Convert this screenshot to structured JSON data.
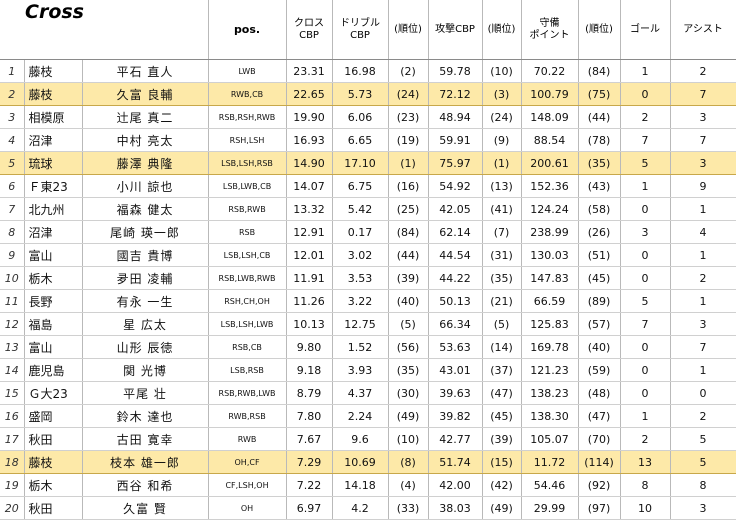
{
  "title": "Cross",
  "headers": {
    "pos": "pos.",
    "cross_cbp": [
      "クロス",
      "CBP"
    ],
    "dribble_cbp": [
      "ドリブル",
      "CBP"
    ],
    "rank1": "(順位)",
    "attack_cbp": "攻撃CBP",
    "rank2": "(順位)",
    "defense_pt": [
      "守備",
      "ポイント"
    ],
    "rank3": "(順位)",
    "goal": "ゴール",
    "assist": "アシスト"
  },
  "rows": [
    {
      "no": "1",
      "team": "藤枝",
      "player": "平石 直人",
      "pos": "LWB",
      "cross": "23.31",
      "dribble": "16.98",
      "r1": "(2)",
      "attack": "59.78",
      "r2": "(10)",
      "defense": "70.22",
      "r3": "(84)",
      "goal": "1",
      "assist": "2",
      "hl": false
    },
    {
      "no": "2",
      "team": "藤枝",
      "player": "久富 良輔",
      "pos": "RWB,CB",
      "cross": "22.65",
      "dribble": "5.73",
      "r1": "(24)",
      "attack": "72.12",
      "r2": "(3)",
      "defense": "100.79",
      "r3": "(75)",
      "goal": "0",
      "assist": "7",
      "hl": true
    },
    {
      "no": "3",
      "team": "相模原",
      "player": "辻尾 真二",
      "pos": "RSB,RSH,RWB",
      "cross": "19.90",
      "dribble": "6.06",
      "r1": "(23)",
      "attack": "48.94",
      "r2": "(24)",
      "defense": "148.09",
      "r3": "(44)",
      "goal": "2",
      "assist": "3",
      "hl": false
    },
    {
      "no": "4",
      "team": "沼津",
      "player": "中村 亮太",
      "pos": "RSH,LSH",
      "cross": "16.93",
      "dribble": "6.65",
      "r1": "(19)",
      "attack": "59.91",
      "r2": "(9)",
      "defense": "88.54",
      "r3": "(78)",
      "goal": "7",
      "assist": "7",
      "hl": false
    },
    {
      "no": "5",
      "team": "琉球",
      "player": "藤澤 典隆",
      "pos": "LSB,LSH,RSB",
      "cross": "14.90",
      "dribble": "17.10",
      "r1": "(1)",
      "attack": "75.97",
      "r2": "(1)",
      "defense": "200.61",
      "r3": "(35)",
      "goal": "5",
      "assist": "3",
      "hl": true
    },
    {
      "no": "6",
      "team": "Ｆ東23",
      "player": "小川 諒也",
      "pos": "LSB,LWB,CB",
      "cross": "14.07",
      "dribble": "6.75",
      "r1": "(16)",
      "attack": "54.92",
      "r2": "(13)",
      "defense": "152.36",
      "r3": "(43)",
      "goal": "1",
      "assist": "9",
      "hl": false
    },
    {
      "no": "7",
      "team": "北九州",
      "player": "福森 健太",
      "pos": "RSB,RWB",
      "cross": "13.32",
      "dribble": "5.42",
      "r1": "(25)",
      "attack": "42.05",
      "r2": "(41)",
      "defense": "124.24",
      "r3": "(58)",
      "goal": "0",
      "assist": "1",
      "hl": false
    },
    {
      "no": "8",
      "team": "沼津",
      "player": "尾崎 瑛一郎",
      "pos": "RSB",
      "cross": "12.91",
      "dribble": "0.17",
      "r1": "(84)",
      "attack": "62.14",
      "r2": "(7)",
      "defense": "238.99",
      "r3": "(26)",
      "goal": "3",
      "assist": "4",
      "hl": false
    },
    {
      "no": "9",
      "team": "富山",
      "player": "國吉 貴博",
      "pos": "LSB,LSH,CB",
      "cross": "12.01",
      "dribble": "3.02",
      "r1": "(44)",
      "attack": "44.54",
      "r2": "(31)",
      "defense": "130.03",
      "r3": "(51)",
      "goal": "0",
      "assist": "1",
      "hl": false
    },
    {
      "no": "10",
      "team": "栃木",
      "player": "夛田 凌輔",
      "pos": "RSB,LWB,RWB",
      "cross": "11.91",
      "dribble": "3.53",
      "r1": "(39)",
      "attack": "44.22",
      "r2": "(35)",
      "defense": "147.83",
      "r3": "(45)",
      "goal": "0",
      "assist": "2",
      "hl": false
    },
    {
      "no": "11",
      "team": "長野",
      "player": "有永 一生",
      "pos": "RSH,CH,OH",
      "cross": "11.26",
      "dribble": "3.22",
      "r1": "(40)",
      "attack": "50.13",
      "r2": "(21)",
      "defense": "66.59",
      "r3": "(89)",
      "goal": "5",
      "assist": "1",
      "hl": false
    },
    {
      "no": "12",
      "team": "福島",
      "player": "星 広太",
      "pos": "LSB,LSH,LWB",
      "cross": "10.13",
      "dribble": "12.75",
      "r1": "(5)",
      "attack": "66.34",
      "r2": "(5)",
      "defense": "125.83",
      "r3": "(57)",
      "goal": "7",
      "assist": "3",
      "hl": false
    },
    {
      "no": "13",
      "team": "富山",
      "player": "山形 辰徳",
      "pos": "RSB,CB",
      "cross": "9.80",
      "dribble": "1.52",
      "r1": "(56)",
      "attack": "53.63",
      "r2": "(14)",
      "defense": "169.78",
      "r3": "(40)",
      "goal": "0",
      "assist": "7",
      "hl": false
    },
    {
      "no": "14",
      "team": "鹿児島",
      "player": "関 光博",
      "pos": "LSB,RSB",
      "cross": "9.18",
      "dribble": "3.93",
      "r1": "(35)",
      "attack": "43.01",
      "r2": "(37)",
      "defense": "121.23",
      "r3": "(59)",
      "goal": "0",
      "assist": "1",
      "hl": false
    },
    {
      "no": "15",
      "team": "Ｇ大23",
      "player": "平尾 壮",
      "pos": "RSB,RWB,LWB",
      "cross": "8.79",
      "dribble": "4.37",
      "r1": "(30)",
      "attack": "39.63",
      "r2": "(47)",
      "defense": "138.23",
      "r3": "(48)",
      "goal": "0",
      "assist": "0",
      "hl": false
    },
    {
      "no": "16",
      "team": "盛岡",
      "player": "鈴木 達也",
      "pos": "RWB,RSB",
      "cross": "7.80",
      "dribble": "2.24",
      "r1": "(49)",
      "attack": "39.82",
      "r2": "(45)",
      "defense": "138.30",
      "r3": "(47)",
      "goal": "1",
      "assist": "2",
      "hl": false
    },
    {
      "no": "17",
      "team": "秋田",
      "player": "古田 寛幸",
      "pos": "RWB",
      "cross": "7.67",
      "dribble": "9.6",
      "r1": "(10)",
      "attack": "42.77",
      "r2": "(39)",
      "defense": "105.07",
      "r3": "(70)",
      "goal": "2",
      "assist": "5",
      "hl": false
    },
    {
      "no": "18",
      "team": "藤枝",
      "player": "枝本 雄一郎",
      "pos": "OH,CF",
      "cross": "7.29",
      "dribble": "10.69",
      "r1": "(8)",
      "attack": "51.74",
      "r2": "(15)",
      "defense": "11.72",
      "r3": "(114)",
      "goal": "13",
      "assist": "5",
      "hl": true
    },
    {
      "no": "19",
      "team": "栃木",
      "player": "西谷 和希",
      "pos": "CF,LSH,OH",
      "cross": "7.22",
      "dribble": "14.18",
      "r1": "(4)",
      "attack": "42.00",
      "r2": "(42)",
      "defense": "54.46",
      "r3": "(92)",
      "goal": "8",
      "assist": "8",
      "hl": false
    },
    {
      "no": "20",
      "team": "秋田",
      "player": "久富 賢",
      "pos": "OH",
      "cross": "6.97",
      "dribble": "4.2",
      "r1": "(33)",
      "attack": "38.03",
      "r2": "(49)",
      "defense": "29.99",
      "r3": "(97)",
      "goal": "10",
      "assist": "3",
      "hl": false
    }
  ]
}
